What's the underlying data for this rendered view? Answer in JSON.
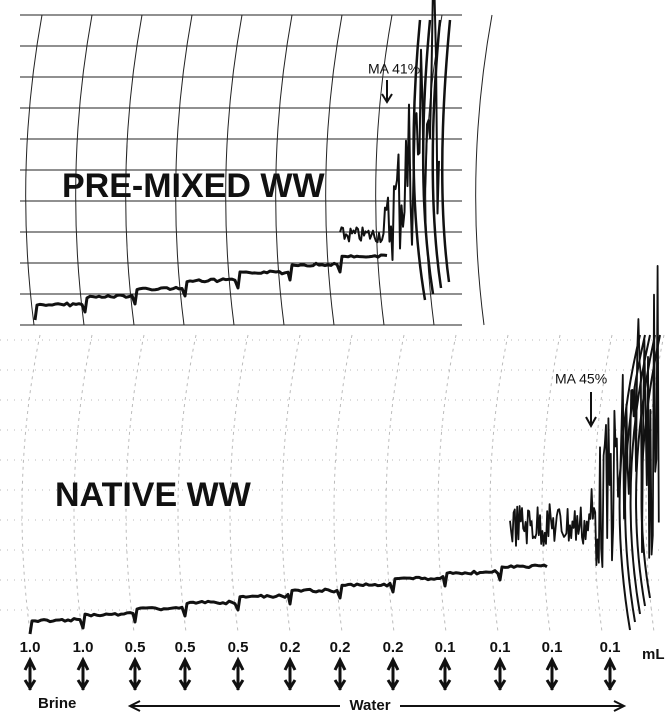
{
  "panels": [
    {
      "label": "PRE-MIXED WW",
      "annotation": "MA 41%"
    },
    {
      "label": "NATIVE WW",
      "annotation": "MA 45%"
    }
  ],
  "additions": {
    "volumes": [
      "1.0",
      "1.0",
      "0.5",
      "0.5",
      "0.5",
      "0.2",
      "0.2",
      "0.2",
      "0.1",
      "0.1",
      "0.1",
      "0.1"
    ],
    "unit": "mL",
    "brine": "Brine",
    "water": "Water"
  }
}
